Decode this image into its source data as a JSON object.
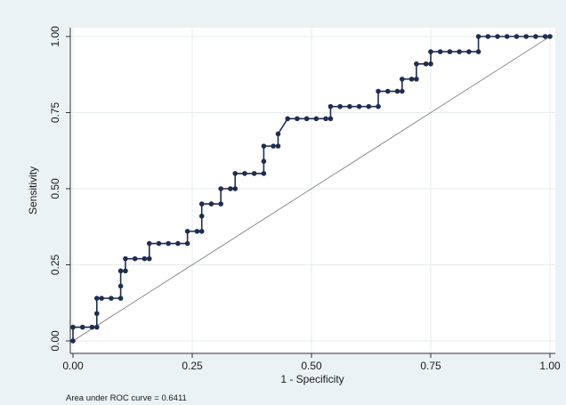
{
  "chart_data": {
    "type": "line",
    "xlabel": "1 - Specificity",
    "ylabel": "Sensitivity",
    "xlim": [
      0,
      1
    ],
    "ylim": [
      0,
      1
    ],
    "xticks": [
      "0.00",
      "0.25",
      "0.50",
      "0.75",
      "1.00"
    ],
    "yticks": [
      "0.00",
      "0.25",
      "0.50",
      "0.75",
      "1.00"
    ],
    "grid": true,
    "annotation": "Area under ROC curve = 0.6411",
    "colors": {
      "curve": "#1f2d4f",
      "reference": "#8c8c8c",
      "grid": "#e6eced",
      "plot_bg": "#ffffff"
    },
    "series": [
      {
        "values_x": [
          0.0,
          0.0,
          0.02,
          0.04,
          0.05,
          0.05,
          0.05,
          0.06,
          0.08,
          0.1,
          0.1,
          0.1,
          0.11,
          0.11,
          0.13,
          0.15,
          0.16,
          0.16,
          0.18,
          0.2,
          0.22,
          0.24,
          0.24,
          0.26,
          0.27,
          0.27,
          0.27,
          0.29,
          0.31,
          0.31,
          0.33,
          0.34,
          0.34,
          0.36,
          0.38,
          0.4,
          0.4,
          0.4,
          0.42,
          0.43,
          0.43,
          0.45,
          0.47,
          0.49,
          0.51,
          0.53,
          0.54,
          0.54,
          0.56,
          0.58,
          0.6,
          0.62,
          0.64,
          0.64,
          0.66,
          0.68,
          0.69,
          0.69,
          0.71,
          0.72,
          0.72,
          0.74,
          0.75,
          0.75,
          0.77,
          0.79,
          0.81,
          0.83,
          0.85,
          0.85,
          0.87,
          0.89,
          0.91,
          0.93,
          0.95,
          0.97,
          0.99,
          1.0
        ],
        "values_y": [
          0.0,
          0.045,
          0.045,
          0.045,
          0.045,
          0.09,
          0.14,
          0.14,
          0.14,
          0.14,
          0.18,
          0.23,
          0.23,
          0.27,
          0.27,
          0.27,
          0.27,
          0.32,
          0.32,
          0.32,
          0.32,
          0.32,
          0.36,
          0.36,
          0.36,
          0.41,
          0.45,
          0.45,
          0.45,
          0.5,
          0.5,
          0.5,
          0.55,
          0.55,
          0.55,
          0.55,
          0.59,
          0.64,
          0.64,
          0.64,
          0.68,
          0.73,
          0.73,
          0.73,
          0.73,
          0.73,
          0.73,
          0.77,
          0.77,
          0.77,
          0.77,
          0.77,
          0.77,
          0.82,
          0.82,
          0.82,
          0.82,
          0.86,
          0.86,
          0.86,
          0.91,
          0.91,
          0.91,
          0.95,
          0.95,
          0.95,
          0.95,
          0.95,
          0.95,
          1.0,
          1.0,
          1.0,
          1.0,
          1.0,
          1.0,
          1.0,
          1.0,
          1.0
        ]
      }
    ]
  }
}
